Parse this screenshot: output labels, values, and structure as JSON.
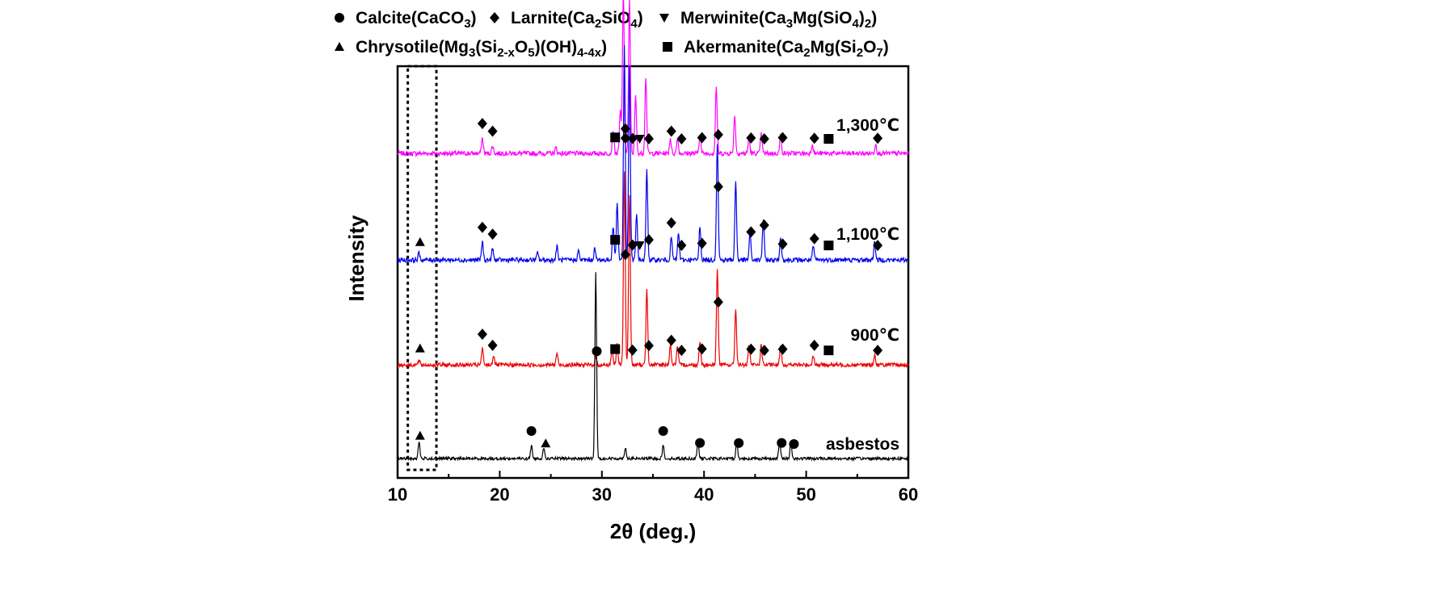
{
  "chart_data": {
    "type": "line",
    "title": "",
    "xlabel": "2θ (deg.)",
    "ylabel": "Intensity",
    "xlim": [
      10,
      60
    ],
    "xticks": [
      10,
      20,
      30,
      40,
      50,
      60
    ],
    "tick_labels": [
      "10",
      "20",
      "30",
      "40",
      "50",
      "60"
    ],
    "yticks_shown": false,
    "highlight_region_x": [
      11.0,
      13.8
    ],
    "legend": [
      {
        "marker": "circle",
        "text": "Calcite(CaCO",
        "sub": "3",
        "tail": ")"
      },
      {
        "marker": "diamond",
        "text": "Larnite(Ca",
        "sub": "2",
        "mid": "SiO",
        "sub2": "4",
        "tail": ")"
      },
      {
        "marker": "triangle-down",
        "text": "Merwinite(Ca",
        "sub": "3",
        "mid": "Mg(SiO",
        "sub2": "4",
        "mid2": ")",
        "sub3": "2",
        "tail": ")"
      },
      {
        "marker": "triangle-up",
        "text": "Chrysotile(Mg",
        "sub": "3",
        "mid": "(Si",
        "sub2": "2-x",
        "mid2": "O",
        "sub3": "5",
        "mid3": ")(OH)",
        "sub4": "4-4x",
        "tail": ")"
      },
      {
        "marker": "square",
        "text": "Akermanite(Ca",
        "sub": "2",
        "mid": "Mg(Si",
        "sub2": "2",
        "mid2": "O",
        "sub3": "7",
        "tail": ")"
      }
    ],
    "series": [
      {
        "name": "1,300℃",
        "color": "#ff00ff",
        "baseline": 0.15,
        "noise": 0.012,
        "peaks": [
          [
            18.3,
            0.08
          ],
          [
            19.3,
            0.04
          ],
          [
            25.5,
            0.03
          ],
          [
            31.1,
            0.12
          ],
          [
            31.8,
            0.22
          ],
          [
            32.1,
            0.85
          ],
          [
            32.7,
            0.8
          ],
          [
            33.3,
            0.3
          ],
          [
            34.3,
            0.4
          ],
          [
            36.7,
            0.08
          ],
          [
            37.4,
            0.08
          ],
          [
            39.6,
            0.1
          ],
          [
            41.2,
            0.35
          ],
          [
            43.0,
            0.2
          ],
          [
            44.4,
            0.08
          ],
          [
            45.6,
            0.1
          ],
          [
            47.5,
            0.1
          ],
          [
            50.6,
            0.05
          ],
          [
            56.8,
            0.05
          ]
        ],
        "markers": [
          [
            18.3,
            "diamond"
          ],
          [
            19.3,
            "diamond"
          ],
          [
            31.3,
            "square"
          ],
          [
            32.3,
            "diamond"
          ],
          [
            33.0,
            "diamond"
          ],
          [
            33.7,
            "triangle-down"
          ],
          [
            34.6,
            "diamond"
          ],
          [
            36.8,
            "diamond"
          ],
          [
            37.8,
            "diamond"
          ],
          [
            39.8,
            "diamond"
          ],
          [
            41.4,
            "diamond"
          ],
          [
            44.6,
            "diamond"
          ],
          [
            45.9,
            "diamond"
          ],
          [
            47.7,
            "diamond"
          ],
          [
            50.8,
            "diamond"
          ],
          [
            52.2,
            "square"
          ],
          [
            57.0,
            "diamond"
          ]
        ]
      },
      {
        "name": "1,100℃",
        "color": "#0000ee",
        "baseline": 0.15,
        "noise": 0.01,
        "peaks": [
          [
            12.1,
            0.03
          ],
          [
            18.3,
            0.08
          ],
          [
            19.3,
            0.05
          ],
          [
            23.7,
            0.03
          ],
          [
            25.6,
            0.06
          ],
          [
            27.7,
            0.04
          ],
          [
            29.3,
            0.05
          ],
          [
            31.1,
            0.15
          ],
          [
            31.5,
            0.25
          ],
          [
            32.2,
            0.95
          ],
          [
            32.7,
            0.85
          ],
          [
            33.4,
            0.2
          ],
          [
            34.4,
            0.4
          ],
          [
            36.8,
            0.1
          ],
          [
            37.5,
            0.12
          ],
          [
            39.6,
            0.15
          ],
          [
            41.3,
            0.52
          ],
          [
            43.1,
            0.35
          ],
          [
            44.5,
            0.12
          ],
          [
            45.8,
            0.18
          ],
          [
            47.5,
            0.1
          ],
          [
            50.7,
            0.06
          ],
          [
            56.7,
            0.08
          ]
        ],
        "markers": [
          [
            12.2,
            "triangle-up"
          ],
          [
            18.3,
            "diamond"
          ],
          [
            19.3,
            "diamond"
          ],
          [
            31.3,
            "square"
          ],
          [
            32.3,
            "diamond"
          ],
          [
            33.0,
            "diamond"
          ],
          [
            33.7,
            "triangle-down"
          ],
          [
            34.6,
            "diamond"
          ],
          [
            36.8,
            "diamond"
          ],
          [
            37.8,
            "diamond"
          ],
          [
            39.8,
            "diamond"
          ],
          [
            41.4,
            "diamond"
          ],
          [
            44.6,
            "diamond"
          ],
          [
            45.9,
            "diamond"
          ],
          [
            47.7,
            "diamond"
          ],
          [
            50.8,
            "diamond"
          ],
          [
            52.2,
            "square"
          ],
          [
            57.0,
            "diamond"
          ]
        ]
      },
      {
        "name": "900℃",
        "color": "#ee0000",
        "baseline": 0.15,
        "noise": 0.01,
        "peaks": [
          [
            12.1,
            0.02
          ],
          [
            18.3,
            0.08
          ],
          [
            19.4,
            0.05
          ],
          [
            25.6,
            0.06
          ],
          [
            29.4,
            0.04
          ],
          [
            31.0,
            0.08
          ],
          [
            31.5,
            0.1
          ],
          [
            32.2,
            0.95
          ],
          [
            32.7,
            0.85
          ],
          [
            34.4,
            0.38
          ],
          [
            36.7,
            0.1
          ],
          [
            37.4,
            0.09
          ],
          [
            39.6,
            0.12
          ],
          [
            41.3,
            0.48
          ],
          [
            43.1,
            0.28
          ],
          [
            44.4,
            0.1
          ],
          [
            45.6,
            0.1
          ],
          [
            47.5,
            0.1
          ],
          [
            50.7,
            0.05
          ],
          [
            56.7,
            0.05
          ]
        ],
        "markers": [
          [
            12.2,
            "triangle-up"
          ],
          [
            18.3,
            "diamond"
          ],
          [
            19.3,
            "diamond"
          ],
          [
            31.3,
            "square"
          ],
          [
            32.3,
            "diamond"
          ],
          [
            33.0,
            "diamond"
          ],
          [
            34.6,
            "diamond"
          ],
          [
            36.8,
            "diamond"
          ],
          [
            37.8,
            "diamond"
          ],
          [
            39.8,
            "diamond"
          ],
          [
            41.4,
            "diamond"
          ],
          [
            44.6,
            "diamond"
          ],
          [
            45.9,
            "diamond"
          ],
          [
            47.7,
            "diamond"
          ],
          [
            50.8,
            "diamond"
          ],
          [
            52.2,
            "square"
          ],
          [
            57.0,
            "diamond"
          ]
        ]
      },
      {
        "name": "asbestos",
        "color": "#000000",
        "baseline": 0.15,
        "noise": 0.008,
        "peaks": [
          [
            12.1,
            0.09
          ],
          [
            23.1,
            0.07
          ],
          [
            24.3,
            0.06
          ],
          [
            29.4,
            1.0
          ],
          [
            32.3,
            0.06
          ],
          [
            36.0,
            0.07
          ],
          [
            39.4,
            0.1
          ],
          [
            43.2,
            0.09
          ],
          [
            47.4,
            0.1
          ],
          [
            48.5,
            0.09
          ]
        ],
        "markers": [
          [
            12.2,
            "triangle-up"
          ],
          [
            23.1,
            "circle"
          ],
          [
            24.5,
            "triangle-up"
          ],
          [
            29.5,
            "circle"
          ],
          [
            36.0,
            "circle"
          ],
          [
            39.6,
            "circle"
          ],
          [
            43.4,
            "circle"
          ],
          [
            47.6,
            "circle"
          ],
          [
            48.8,
            "circle"
          ]
        ]
      }
    ]
  }
}
